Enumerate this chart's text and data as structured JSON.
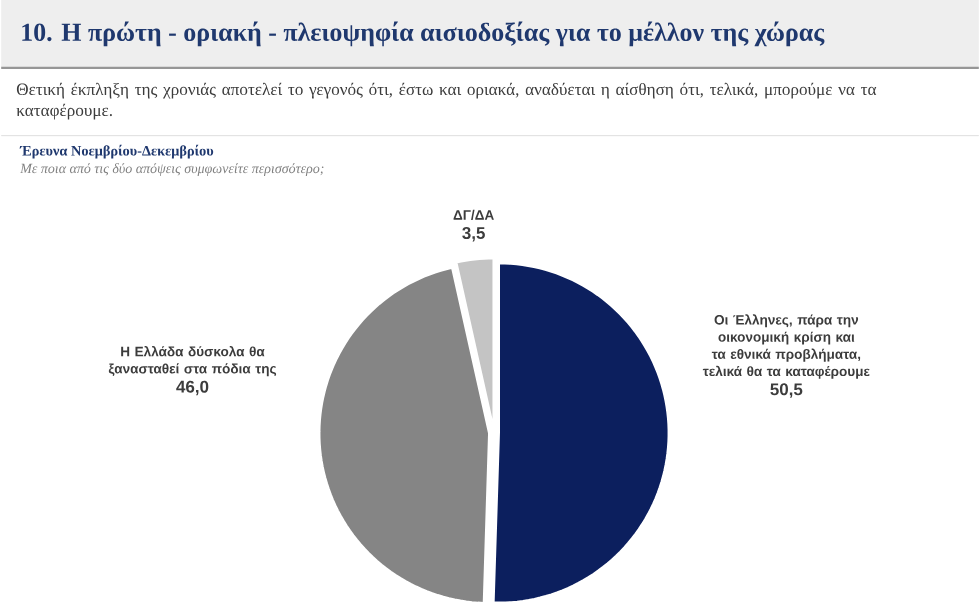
{
  "chart_data": {
    "type": "pie",
    "title": "10. Η πρώτη - οριακή - πλειοψηφία αισιοδοξίας για το μέλλον της χώρας",
    "subtitle": "Θετική έκπληξη της χρονιάς αποτελεί το γεγονός ότι, έστω και οριακά, αναδύεται η αίσθηση ότι, τελικά, μπορούμε να τα καταφέρουμε.",
    "annotations": [
      "Έρευνα Νοεμβρίου-Δεκεμβρίου",
      "Με ποια από τις δύο απόψεις συμφωνείτε περισσότερο;"
    ],
    "categories": [
      "Οι Έλληνες, πάρα την οικονομική κρίση και τα εθνικά προβλήματα, τελικά θα τα καταφέρουμε",
      "Η Ελλάδα δύσκολα θα ξανασταθεί στα πόδια της",
      "ΔΓ/ΔΑ"
    ],
    "values": [
      50.5,
      46.0,
      3.5
    ],
    "value_labels": [
      "50,5",
      "46,0",
      "3,5"
    ],
    "colors": [
      "#0c1f5e",
      "#858585",
      "#c4c4c4"
    ]
  }
}
